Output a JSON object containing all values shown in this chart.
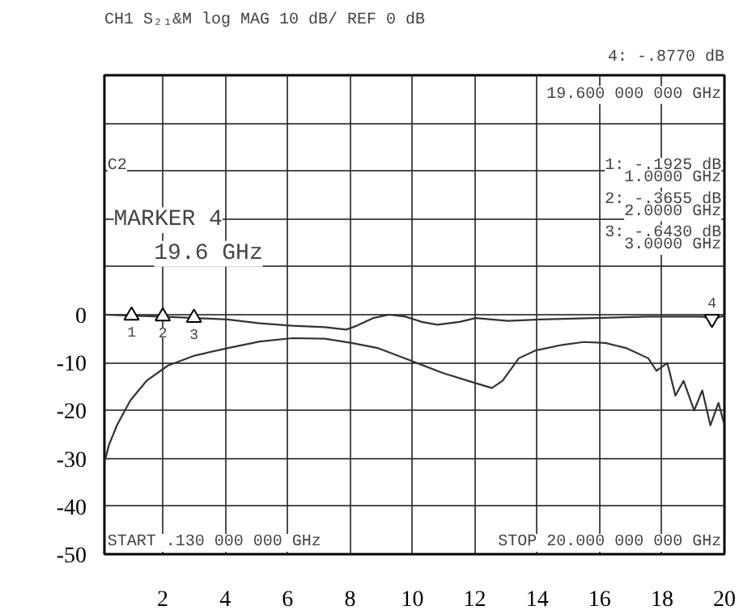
{
  "chart_data": {
    "type": "line",
    "title": "CH1 S₂₁&M log MAG    10 dB/   REF 0 dB",
    "series": [
      {
        "color": "#333333",
        "x": [
          0.13,
          0.96,
          2.0,
          3.04,
          4.07,
          5.11,
          6.15,
          7.19,
          7.88,
          8.22,
          8.74,
          9.26,
          9.78,
          10.3,
          10.8,
          11.51,
          12.03,
          13.06,
          14.1,
          15.83,
          17.56,
          19.29,
          19.64,
          20.0
        ],
        "values": [
          0,
          -0.2,
          -0.4,
          -0.7,
          -1.0,
          -1.8,
          -2.3,
          -2.6,
          -3.1,
          -2.3,
          -0.7,
          0,
          -0.4,
          -1.5,
          -2.1,
          -1.5,
          -0.7,
          -1.3,
          -1.0,
          -0.7,
          -0.4,
          -0.4,
          -0.9,
          -0.2
        ]
      },
      {
        "color": "#333333",
        "x": [
          0.13,
          0.27,
          0.53,
          0.96,
          1.48,
          2.17,
          3.04,
          4.07,
          5.11,
          6.15,
          7.19,
          8.05,
          8.91,
          9.95,
          10.99,
          12.03,
          12.55,
          12.89,
          13.41,
          13.93,
          14.8,
          15.49,
          16.18,
          16.87,
          17.56,
          17.82,
          18.17,
          18.43,
          18.69,
          19.03,
          19.29,
          19.55,
          19.81,
          20.0
        ],
        "values": [
          -30.9,
          -27.3,
          -23.1,
          -17.9,
          -13.8,
          -10.6,
          -8.5,
          -7.0,
          -5.6,
          -4.9,
          -5.0,
          -5.9,
          -7.0,
          -9.6,
          -12.2,
          -14.3,
          -15.3,
          -13.8,
          -9.1,
          -7.5,
          -6.3,
          -5.7,
          -5.9,
          -7.0,
          -9.1,
          -11.7,
          -10.1,
          -16.9,
          -13.8,
          -20.0,
          -15.8,
          -23.1,
          -18.4,
          -23.1
        ]
      }
    ],
    "xlim": [
      0.13,
      20
    ],
    "xticks": [
      2,
      4,
      6,
      8,
      10,
      12,
      14,
      16,
      18,
      20
    ],
    "ylim": [
      -50,
      50
    ],
    "yticks": [
      {
        "value": 50,
        "label": null
      },
      {
        "value": 40,
        "label": null
      },
      {
        "value": 30,
        "label": null
      },
      {
        "value": 20,
        "label": null
      },
      {
        "value": 10,
        "label": null
      },
      0,
      -10,
      -20,
      -30,
      -40,
      -50
    ],
    "grid": true,
    "marker": "none",
    "line_style": "solid",
    "annotations": [
      "C2",
      "MARKER 4",
      "19.6 GHz",
      "19.600 000 000 GHz",
      "1: -.1925 dB",
      "1.0000 GHz",
      "2: -.3655 dB",
      "2.0000 GHz",
      "3: -.6430 dB",
      "3.0000 GHz",
      "START  .130 000 000 GHz",
      "STOP 20.000 000 000 GHz",
      "4: -.8770 dB",
      {
        "text": "1",
        "x": 1,
        "y": -0.1925
      },
      {
        "text": "2",
        "x": 2,
        "y": -0.3655
      },
      {
        "text": "3",
        "x": 3,
        "y": -0.643
      },
      {
        "text": "4",
        "x": 19.6,
        "y": -0.877
      }
    ]
  }
}
